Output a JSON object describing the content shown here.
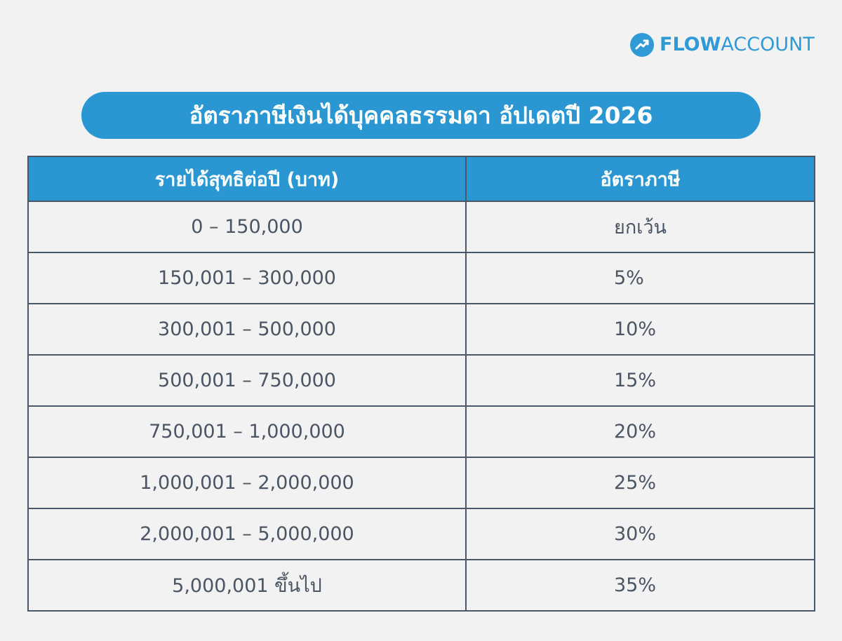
{
  "brand": {
    "name_part1": "FLOW",
    "name_part2": "ACCOUNT",
    "logo_icon": "trend-up-arrow-icon",
    "color": "#2f9ad6"
  },
  "title": "อัตราภาษีเงินได้บุคคลธรรมดา อัปเดตปี 2026",
  "table": {
    "headers": [
      "รายได้สุทธิต่อปี (บาท)",
      "อัตราภาษี"
    ],
    "rows": [
      {
        "income": "0 – 150,000",
        "rate": "ยกเว้น"
      },
      {
        "income": "150,001 – 300,000",
        "rate": "5%"
      },
      {
        "income": "300,001 – 500,000",
        "rate": "10%"
      },
      {
        "income": "500,001 – 750,000",
        "rate": "15%"
      },
      {
        "income": "750,001 – 1,000,000",
        "rate": "20%"
      },
      {
        "income": "1,000,001 – 2,000,000",
        "rate": "25%"
      },
      {
        "income": "2,000,001 – 5,000,000",
        "rate": "30%"
      },
      {
        "income": "5,000,001 ขึ้นไป",
        "rate": "35%"
      }
    ]
  },
  "colors": {
    "accent": "#2a97d2",
    "border": "#4a5766",
    "text": "#4b5563",
    "background": "#f2f2f2"
  }
}
